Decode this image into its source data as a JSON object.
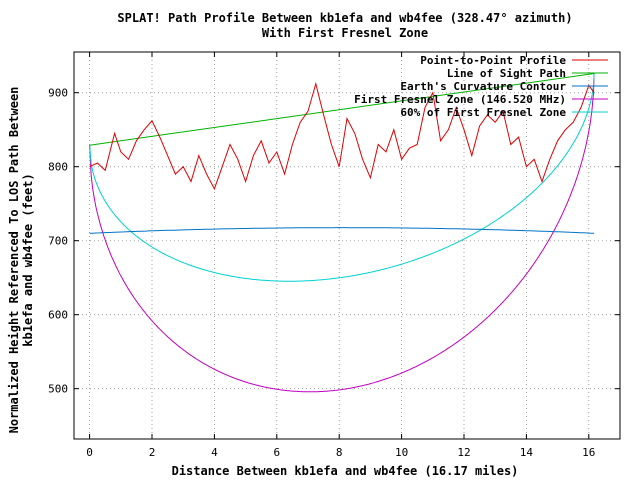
{
  "chart_data": {
    "type": "line",
    "title": "SPLAT! Path Profile Between kb1efa and wb4fee (328.47° azimuth)",
    "subtitle": "With First Fresnel Zone",
    "xlabel": "Distance Between kb1efa and wb4fee (16.17 miles)",
    "ylabel_line1": "Normalized Height Referenced To LOS Path Between",
    "ylabel_line2": "kb1efa and wb4fee (feet)",
    "xlim": [
      -0.5,
      17.0
    ],
    "ylim": [
      432,
      955
    ],
    "x_ticks": [
      0,
      2,
      4,
      6,
      8,
      10,
      12,
      14,
      16
    ],
    "y_ticks": [
      500,
      600,
      700,
      800,
      900
    ],
    "grid": true,
    "legend_position": "top-right",
    "colors": {
      "profile": "#e00000",
      "los": "#00b000",
      "curvature": "#0072c4",
      "fresnel": "#c000c0",
      "fresnel60": "#00d0d0",
      "grid": "#a0a0a0"
    },
    "series": [
      {
        "name": "Point-to-Point Profile",
        "color": "#e00000",
        "x": [
          0.0,
          0.25,
          0.5,
          0.8,
          1.0,
          1.25,
          1.5,
          1.75,
          2.0,
          2.25,
          2.5,
          2.75,
          3.0,
          3.25,
          3.5,
          3.75,
          4.0,
          4.25,
          4.5,
          4.75,
          5.0,
          5.25,
          5.5,
          5.75,
          6.0,
          6.25,
          6.5,
          6.75,
          7.0,
          7.25,
          7.5,
          7.75,
          8.0,
          8.25,
          8.5,
          8.75,
          9.0,
          9.25,
          9.5,
          9.75,
          10.0,
          10.25,
          10.5,
          10.75,
          11.0,
          11.25,
          11.5,
          11.75,
          12.0,
          12.25,
          12.5,
          12.75,
          13.0,
          13.25,
          13.5,
          13.75,
          14.0,
          14.25,
          14.5,
          14.75,
          15.0,
          15.25,
          15.5,
          15.75,
          16.0,
          16.17
        ],
        "y": [
          800,
          805,
          795,
          845,
          820,
          810,
          835,
          850,
          862,
          840,
          815,
          790,
          800,
          780,
          815,
          790,
          770,
          800,
          830,
          810,
          780,
          815,
          835,
          805,
          820,
          790,
          830,
          860,
          875,
          912,
          870,
          830,
          800,
          865,
          845,
          810,
          785,
          830,
          820,
          850,
          810,
          825,
          830,
          880,
          900,
          835,
          850,
          880,
          850,
          815,
          855,
          870,
          860,
          875,
          830,
          840,
          800,
          810,
          780,
          810,
          835,
          850,
          860,
          880,
          910,
          900
        ]
      },
      {
        "name": "Line of Sight Path",
        "color": "#00b000",
        "x": [
          0,
          16.17
        ],
        "y": [
          829,
          926
        ]
      },
      {
        "name": "Earth's Curvature Contour",
        "color": "#0072c4",
        "k": 4.0,
        "base": 710
      },
      {
        "name": "First Fresnel Zone (146.520 MHz)",
        "color": "#c000c0",
        "dx": 0.5,
        "freq_mhz": 146.52
      },
      {
        "name": "60% of First Fresnel Zone",
        "color": "#00d0d0",
        "dx": 0.5,
        "fraction": 0.6
      }
    ]
  }
}
